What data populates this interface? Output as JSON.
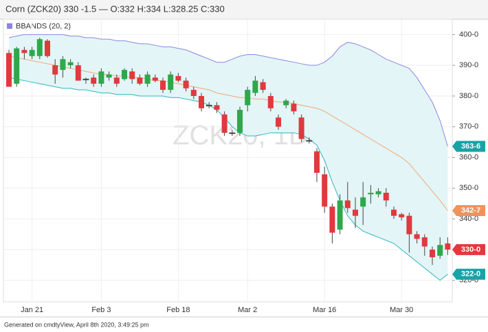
{
  "chart_data": {
    "type": "candlestick",
    "title": "Corn (ZCK20) 330 -1.5 — O:332 H:334 L:328.25 C:330",
    "legend": "BBANDS (20, 2)",
    "watermark": "ZCK20, 1D",
    "footer": "Generated on cmdtyView, April 8th 2020, 3:49:25 pm",
    "categories": [
      null,
      null,
      null,
      "Jan 21",
      null,
      null,
      null,
      null,
      null,
      null,
      null,
      null,
      "Feb 3",
      null,
      null,
      null,
      null,
      null,
      null,
      null,
      null,
      null,
      "Feb 18",
      null,
      null,
      null,
      null,
      null,
      null,
      null,
      null,
      "Mar 2",
      null,
      null,
      null,
      null,
      null,
      null,
      null,
      null,
      null,
      "Mar 16",
      null,
      null,
      null,
      null,
      null,
      null,
      null,
      null,
      null,
      "Mar 30",
      null,
      null,
      null,
      null,
      null,
      null
    ],
    "open": [
      394,
      384,
      395,
      393,
      393,
      398,
      390,
      388.5,
      390,
      390,
      385.5,
      386,
      384,
      386,
      386,
      385.5,
      388,
      386,
      384,
      386,
      385,
      382,
      386.5,
      385,
      382,
      380,
      377,
      377,
      374,
      368,
      368,
      377,
      381,
      384.5,
      380,
      373,
      377,
      377.5,
      373,
      365.5,
      362,
      354.5,
      344,
      336.5,
      346,
      343,
      344,
      348,
      348,
      348.5,
      343,
      341.5,
      341,
      335,
      334,
      330,
      328,
      332
    ],
    "high": [
      395,
      396,
      396,
      396,
      399,
      398.5,
      392,
      393,
      392,
      391,
      386,
      387,
      389,
      388,
      387,
      389,
      389,
      387,
      388,
      387,
      386,
      388,
      387.5,
      386,
      383,
      381,
      378,
      378,
      375,
      369,
      376.5,
      383,
      386.5,
      385.5,
      381,
      374,
      379,
      378.5,
      374,
      366.5,
      363,
      357,
      345,
      348,
      352,
      347,
      352,
      351,
      350,
      350,
      344,
      342,
      342,
      336,
      335,
      331,
      334,
      334
    ],
    "low": [
      383,
      383,
      392,
      392,
      392,
      392.5,
      384,
      386,
      389,
      385,
      384,
      383,
      383,
      385,
      383,
      385,
      384,
      383.5,
      383,
      384.5,
      381,
      381,
      384.5,
      381.5,
      379,
      375,
      376,
      374.5,
      367,
      367,
      367,
      375,
      380,
      381,
      375,
      369,
      376,
      374,
      365,
      364.5,
      352,
      342,
      332,
      335,
      342,
      337,
      338,
      345,
      347,
      344,
      340,
      339.5,
      329,
      332,
      328,
      325,
      327,
      328.25
    ],
    "close": [
      383,
      395.5,
      394,
      395,
      398.5,
      393,
      387,
      392,
      391,
      385,
      385.5,
      384,
      388,
      387,
      384,
      388.5,
      385.5,
      384,
      387,
      385,
      382,
      387,
      385,
      382.5,
      380,
      376,
      377,
      375.5,
      368,
      368,
      375.5,
      382,
      385,
      382,
      376,
      370,
      378.5,
      375,
      366,
      365.5,
      355,
      344,
      335.5,
      346,
      343.5,
      341,
      347,
      348.5,
      349,
      346,
      341,
      340.5,
      335,
      333.5,
      331,
      327.5,
      331.5,
      330
    ],
    "up_color": "#2ea84a",
    "down_color": "#e0393e",
    "series": [
      {
        "name": "upper",
        "color": "#8a86e0",
        "values": [
          399,
          399.5,
          400,
          400,
          400,
          400,
          400,
          400,
          399.5,
          399.5,
          399,
          399,
          398.5,
          398.5,
          398,
          398,
          397.5,
          397,
          397,
          396.5,
          396,
          396,
          395.5,
          395,
          394,
          393,
          392,
          391,
          391,
          392,
          393,
          393.5,
          393.5,
          393,
          392.5,
          392,
          391.5,
          391,
          390.5,
          390,
          390,
          391,
          393,
          396,
          397.5,
          397,
          396,
          395,
          393.5,
          392,
          391,
          390,
          389,
          386,
          382,
          378,
          372,
          363.6
        ]
      },
      {
        "name": "middle",
        "color": "#f0a878",
        "values": [
          393,
          392.5,
          392,
          391.5,
          391,
          390.5,
          390,
          389.5,
          389,
          388.5,
          388,
          387.5,
          387,
          387,
          386.5,
          386.5,
          386,
          386,
          385.5,
          385,
          385,
          384.5,
          384,
          383.5,
          383,
          382.5,
          382,
          381,
          380.5,
          380,
          379.5,
          379.5,
          379,
          379,
          378.5,
          378,
          378,
          377.5,
          377,
          376.5,
          376,
          375,
          373.5,
          372,
          370.5,
          369,
          367.5,
          366,
          364.5,
          363,
          361.5,
          360,
          358,
          355,
          352,
          349,
          346,
          342.7
        ]
      },
      {
        "name": "lower",
        "color": "#2fb4c0",
        "values": [
          386,
          385.5,
          385,
          384.5,
          384,
          383.5,
          383,
          382.5,
          382.5,
          382,
          382,
          381.5,
          381,
          381,
          380.5,
          380.5,
          380.5,
          380,
          380,
          380,
          380,
          379.5,
          379.5,
          379,
          378.5,
          378,
          377,
          375.5,
          373,
          370,
          368,
          367,
          367,
          367.5,
          368,
          368,
          368,
          368,
          367.5,
          366,
          364,
          359,
          352,
          346,
          341,
          338,
          336,
          335,
          334,
          333,
          332,
          330,
          328,
          326,
          324,
          322,
          320,
          322
        ]
      }
    ],
    "band_fill": "#e3f5f6",
    "price_labels": [
      {
        "value": 363.6,
        "label": "363-6",
        "color": "#19a3a8"
      },
      {
        "value": 342.7,
        "label": "342-7",
        "color": "#f0935a"
      },
      {
        "value": 330,
        "label": "330-0",
        "color": "#e0393e"
      },
      {
        "value": 322,
        "label": "322-0",
        "color": "#19a3a8"
      }
    ],
    "ylim": [
      313,
      405
    ],
    "yticks": [
      {
        "value": 320,
        "label": "320-0"
      },
      {
        "value": 330,
        "label": "330-0"
      },
      {
        "value": 340,
        "label": "340-0"
      },
      {
        "value": 350,
        "label": "350-0"
      },
      {
        "value": 360,
        "label": "360-0"
      },
      {
        "value": 370,
        "label": "370-0"
      },
      {
        "value": 380,
        "label": "380-0"
      },
      {
        "value": 390,
        "label": "390-0"
      },
      {
        "value": 400,
        "label": "400-0"
      }
    ],
    "grid": true
  }
}
